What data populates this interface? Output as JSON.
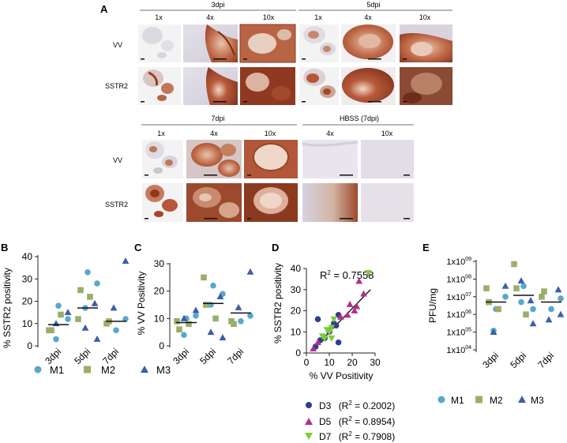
{
  "panel_a": {
    "letter": "A",
    "group_top_left": "3dpi",
    "group_top_right": "5dpi",
    "group_bottom_left": "7dpi",
    "group_bottom_right": "HBSS (7dpi)",
    "mag_1x": "1x",
    "mag_4x": "4x",
    "mag_10x": "10x",
    "row_vv": "VV",
    "row_sstr2": "SSTR2",
    "colors": {
      "stain_dark": "#8b3a22",
      "stain_mid": "#c06a48",
      "stain_light": "#e2b9a2",
      "tissue_blue": "#d8d4e0",
      "bg": "#efefef"
    }
  },
  "panel_b": {
    "letter": "B",
    "ylabel": "% SSTR2 positivity",
    "yticks": [
      "0",
      "10",
      "20",
      "30",
      "40"
    ],
    "categories": [
      "3dpi",
      "5dpi",
      "7dpi"
    ]
  },
  "panel_c": {
    "letter": "C",
    "ylabel": "% VV Positivity",
    "yticks": [
      "0",
      "10",
      "20",
      "30"
    ],
    "categories": [
      "3dpi",
      "5dpi",
      "7dpi"
    ]
  },
  "panel_d": {
    "letter": "D",
    "ylabel": "% SSTR2 positivity",
    "xlabel": "% VV Positivity",
    "yticks": [
      "0",
      "10",
      "20",
      "30",
      "40"
    ],
    "xticks": [
      "0",
      "10",
      "20",
      "30"
    ],
    "r2_label": "R",
    "r2_value": " = 0.7558",
    "legend": [
      {
        "name": "D3",
        "r2": "(R",
        "r2val": " = 0.2002)"
      },
      {
        "name": "D5",
        "r2": "(R",
        "r2val": " = 0.8954)"
      },
      {
        "name": "D7",
        "r2": "(R",
        "r2val": " = 0.7908)"
      }
    ]
  },
  "panel_e": {
    "letter": "E",
    "ylabel": "PFU/mg",
    "yticks": [
      {
        "base": "1x10",
        "exp": "04"
      },
      {
        "base": "1x10",
        "exp": "05"
      },
      {
        "base": "1x10",
        "exp": "06"
      },
      {
        "base": "1x10",
        "exp": "07"
      },
      {
        "base": "1x10",
        "exp": "08"
      },
      {
        "base": "1x10",
        "exp": "09"
      }
    ],
    "categories": [
      "3dpi",
      "5dpi",
      "7dpi"
    ]
  },
  "legend_mice": {
    "m1": "M1",
    "m2": "M2",
    "m3": "M3"
  },
  "colors": {
    "m1": "#5aa7cc",
    "m2": "#9aae6a",
    "m3": "#3d5ea8",
    "d3": "#2e3e8e",
    "d5": "#b0318e",
    "d7": "#7ccd3a",
    "fit": "#222222"
  },
  "chart_data": [
    {
      "panel": "B",
      "type": "scatter",
      "title": "",
      "ylabel": "% SSTR2 positivity",
      "categories": [
        "3dpi",
        "5dpi",
        "7dpi"
      ],
      "ylim": [
        0,
        40
      ],
      "medians": [
        9.5,
        17,
        11
      ],
      "series": [
        {
          "name": "M1",
          "points": [
            [
              0,
              18
            ],
            [
              0,
              12
            ],
            [
              0,
              3
            ],
            [
              1,
              33
            ],
            [
              1,
              28
            ],
            [
              1,
              17
            ],
            [
              2,
              7
            ],
            [
              2,
              12
            ]
          ]
        },
        {
          "name": "M2",
          "points": [
            [
              0,
              7
            ],
            [
              0,
              7
            ],
            [
              0,
              14
            ],
            [
              1,
              12
            ],
            [
              1,
              25
            ],
            [
              1,
              22
            ],
            [
              2,
              10
            ],
            [
              2,
              11
            ]
          ]
        },
        {
          "name": "M3",
          "points": [
            [
              0,
              15
            ],
            [
              0,
              10
            ],
            [
              1,
              3
            ],
            [
              1,
              8
            ],
            [
              1,
              19
            ],
            [
              2,
              38
            ],
            [
              2,
              17
            ]
          ]
        }
      ]
    },
    {
      "panel": "C",
      "type": "scatter",
      "ylabel": "% VV Positivity",
      "categories": [
        "3dpi",
        "5dpi",
        "7dpi"
      ],
      "ylim": [
        0,
        30
      ],
      "medians": [
        8.5,
        15.5,
        12
      ],
      "series": [
        {
          "name": "M1",
          "points": [
            [
              0,
              10
            ],
            [
              0,
              11
            ],
            [
              0,
              4
            ],
            [
              1,
              22
            ],
            [
              1,
              19
            ],
            [
              1,
              15
            ],
            [
              2,
              9
            ],
            [
              2,
              11
            ]
          ]
        },
        {
          "name": "M2",
          "points": [
            [
              0,
              9
            ],
            [
              0,
              6
            ],
            [
              0,
              8
            ],
            [
              1,
              25
            ],
            [
              1,
              15
            ],
            [
              1,
              10
            ],
            [
              2,
              9
            ],
            [
              2,
              8
            ]
          ]
        },
        {
          "name": "M3",
          "points": [
            [
              0,
              13
            ],
            [
              0,
              10
            ],
            [
              1,
              3
            ],
            [
              1,
              5
            ],
            [
              1,
              18
            ],
            [
              2,
              27
            ],
            [
              2,
              14
            ]
          ]
        }
      ]
    },
    {
      "panel": "D",
      "type": "scatter",
      "xlabel": "% VV Positivity",
      "ylabel": "% SSTR2 positivity",
      "xlim": [
        0,
        30
      ],
      "ylim": [
        0,
        40
      ],
      "r2": 0.7558,
      "fit_line": [
        [
          3,
          2
        ],
        [
          28,
          30
        ]
      ],
      "series": [
        {
          "name": "D3",
          "r2": 0.2002,
          "marker": "circle",
          "points": [
            [
              4,
              3
            ],
            [
              5,
              16
            ],
            [
              6,
              6
            ],
            [
              8,
              7
            ],
            [
              10,
              10
            ],
            [
              12,
              14
            ],
            [
              13,
              13
            ],
            [
              14,
              5
            ],
            [
              14,
              18
            ]
          ]
        },
        {
          "name": "D5",
          "r2": 0.8954,
          "marker": "triangle-up",
          "points": [
            [
              3,
              2
            ],
            [
              5,
              5
            ],
            [
              10,
              11
            ],
            [
              15,
              17
            ],
            [
              18,
              18
            ],
            [
              19,
              23
            ],
            [
              21,
              20
            ],
            [
              23,
              34
            ],
            [
              25,
              28
            ],
            [
              22,
              22
            ]
          ]
        },
        {
          "name": "D7",
          "r2": 0.7908,
          "marker": "triangle-down",
          "points": [
            [
              7,
              8
            ],
            [
              8,
              7
            ],
            [
              9,
              11
            ],
            [
              10,
              10
            ],
            [
              11,
              12
            ],
            [
              12,
              16
            ],
            [
              27,
              38
            ],
            [
              11,
              7
            ]
          ]
        }
      ]
    },
    {
      "panel": "E",
      "type": "scatter",
      "ylabel": "PFU/mg",
      "categories": [
        "3dpi",
        "5dpi",
        "7dpi"
      ],
      "yscale": "log10",
      "ylim": [
        10000.0,
        1000000000.0
      ],
      "medians": [
        5000000.0,
        12000000.0,
        5000000.0
      ],
      "series": [
        {
          "name": "M1",
          "points": [
            [
              0,
              2000000.0
            ],
            [
              0,
              10000000.0
            ],
            [
              0,
              120000.0
            ],
            [
              1,
              40000000.0
            ],
            [
              1,
              2000000.0
            ],
            [
              1,
              5000000.0
            ],
            [
              2,
              2000000.0
            ],
            [
              2,
              8000000.0
            ]
          ]
        },
        {
          "name": "M2",
          "points": [
            [
              0,
              30000000.0
            ],
            [
              0,
              5000000.0
            ],
            [
              0,
              2000000.0
            ],
            [
              1,
              700000000.0
            ],
            [
              1,
              30000000.0
            ],
            [
              1,
              1000000.0
            ],
            [
              2,
              10000000.0
            ],
            [
              2,
              20000000.0
            ]
          ]
        },
        {
          "name": "M3",
          "points": [
            [
              0,
              40000000.0
            ],
            [
              0,
              100000.0
            ],
            [
              1,
              300000.0
            ],
            [
              1,
              80000000.0
            ],
            [
              1,
              6000000.0
            ],
            [
              2,
              1000000.0
            ],
            [
              2,
              500000.0
            ],
            [
              2,
              25000000.0
            ]
          ]
        }
      ]
    }
  ]
}
